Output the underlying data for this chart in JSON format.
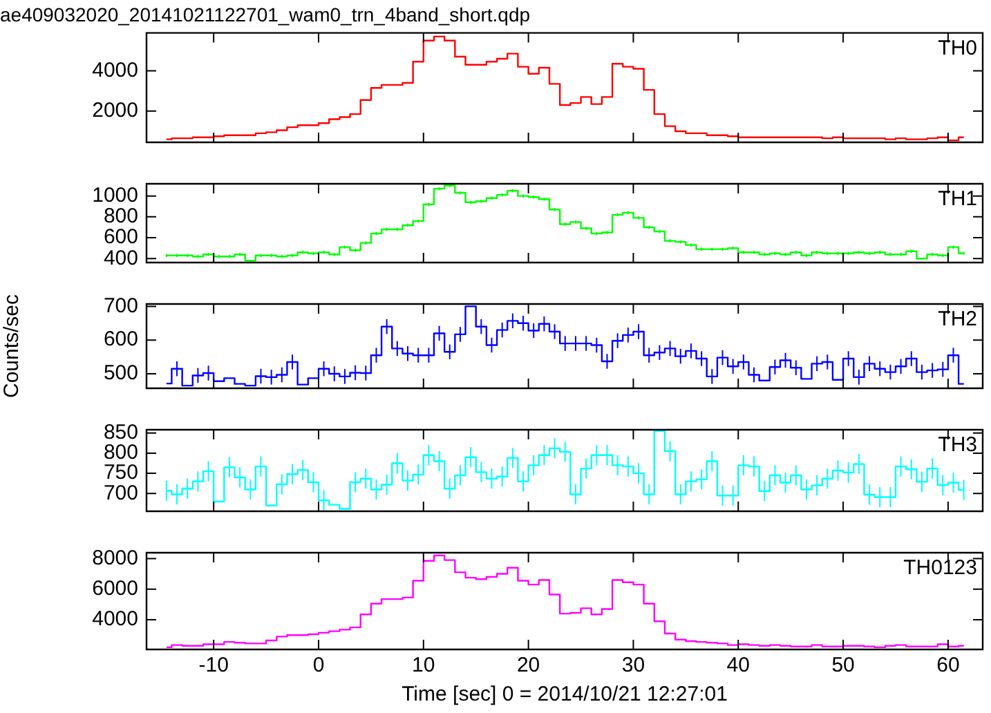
{
  "chart_data": [
    {
      "type": "step",
      "title": "ae409032020_20141021122701_wam0_trn_4band_short.qdp",
      "xlim": [
        -16.4,
        63.3
      ],
      "xticks": [
        -10,
        0,
        10,
        20,
        30,
        40,
        50,
        60
      ],
      "ylim": [
        450,
        5880
      ],
      "yticks": [
        2000,
        4000
      ],
      "tick_labels": "y",
      "legend": false,
      "grid": false,
      "x": [
        -14.5,
        -13.5,
        -12.5,
        -11.5,
        -10.5,
        -9.5,
        -8.5,
        -7.5,
        -6.5,
        -5.5,
        -4.5,
        -3.5,
        -2.5,
        -1.5,
        -0.5,
        0.5,
        1.5,
        2.5,
        3.5,
        4.5,
        5.5,
        6.5,
        7.5,
        8.5,
        9.5,
        10.5,
        11.5,
        12.5,
        13.5,
        14.5,
        15.5,
        16.5,
        17.5,
        18.5,
        19.5,
        20.5,
        21.5,
        22.5,
        23.5,
        24.5,
        25.5,
        26.5,
        27.5,
        28.5,
        29.5,
        30.5,
        31.5,
        32.5,
        33.5,
        34.5,
        35.5,
        36.5,
        37.5,
        38.5,
        39.5,
        40.5,
        41.5,
        42.5,
        43.5,
        44.5,
        45.5,
        46.5,
        47.5,
        48.5,
        49.5,
        50.5,
        51.5,
        52.5,
        53.5,
        54.5,
        55.5,
        56.5,
        57.5,
        58.5,
        59.5,
        60.5,
        61.5
      ],
      "series": [
        {
          "name": "TH0",
          "color": "#ff0000",
          "values": [
            600,
            650,
            650,
            700,
            700,
            750,
            800,
            800,
            800,
            900,
            950,
            1050,
            1200,
            1300,
            1300,
            1400,
            1600,
            1700,
            1850,
            2550,
            3150,
            3300,
            3300,
            3400,
            4450,
            5500,
            5700,
            5500,
            4700,
            4300,
            4300,
            4450,
            4600,
            4850,
            4200,
            3850,
            4150,
            3350,
            2300,
            2400,
            2700,
            2350,
            2700,
            4350,
            4200,
            4100,
            3050,
            1850,
            1250,
            1000,
            900,
            900,
            800,
            800,
            750,
            700,
            700,
            700,
            700,
            700,
            700,
            700,
            700,
            650,
            700,
            650,
            650,
            650,
            650,
            600,
            650,
            600,
            600,
            650,
            700,
            550,
            700
          ]
        }
      ]
    },
    {
      "type": "step",
      "xlim": [
        -16.4,
        63.3
      ],
      "xticks": [
        -10,
        0,
        10,
        20,
        30,
        40,
        50,
        60
      ],
      "ylim": [
        362,
        1117
      ],
      "yticks": [
        400,
        600,
        800,
        1000
      ],
      "tick_labels": "y",
      "legend": false,
      "grid": false,
      "x": [
        -14.5,
        -13.5,
        -12.5,
        -11.5,
        -10.5,
        -9.5,
        -8.5,
        -7.5,
        -6.5,
        -5.5,
        -4.5,
        -3.5,
        -2.5,
        -1.5,
        -0.5,
        0.5,
        1.5,
        2.5,
        3.5,
        4.5,
        5.5,
        6.5,
        7.5,
        8.5,
        9.5,
        10.5,
        11.5,
        12.5,
        13.5,
        14.5,
        15.5,
        16.5,
        17.5,
        18.5,
        19.5,
        20.5,
        21.5,
        22.5,
        23.5,
        24.5,
        25.5,
        26.5,
        27.5,
        28.5,
        29.5,
        30.5,
        31.5,
        32.5,
        33.5,
        34.5,
        35.5,
        36.5,
        37.5,
        38.5,
        39.5,
        40.5,
        41.5,
        42.5,
        43.5,
        44.5,
        45.5,
        46.5,
        47.5,
        48.5,
        49.5,
        50.5,
        51.5,
        52.5,
        53.5,
        54.5,
        55.5,
        56.5,
        57.5,
        58.5,
        59.5,
        60.5,
        61.5
      ],
      "series": [
        {
          "name": "TH1",
          "color": "#00ff00",
          "values": [
            430,
            430,
            430,
            420,
            440,
            420,
            420,
            440,
            380,
            430,
            430,
            420,
            430,
            460,
            450,
            460,
            440,
            510,
            480,
            550,
            640,
            680,
            680,
            720,
            760,
            920,
            1070,
            1100,
            1030,
            940,
            950,
            980,
            1010,
            1050,
            1000,
            990,
            970,
            870,
            730,
            750,
            690,
            640,
            650,
            820,
            840,
            790,
            700,
            660,
            570,
            560,
            530,
            490,
            490,
            490,
            500,
            460,
            460,
            440,
            450,
            440,
            460,
            430,
            460,
            450,
            450,
            450,
            460,
            450,
            460,
            440,
            440,
            470,
            400,
            440,
            430,
            510,
            450
          ],
          "errors": [
            15,
            15,
            15,
            15,
            15,
            15,
            15,
            15,
            null,
            15,
            15,
            15,
            15,
            15,
            15,
            15,
            15,
            15,
            15,
            15,
            15,
            15,
            15,
            15,
            15,
            15,
            15,
            15,
            15,
            15,
            15,
            15,
            15,
            15,
            15,
            15,
            15,
            15,
            15,
            15,
            15,
            15,
            15,
            15,
            15,
            15,
            15,
            15,
            15,
            15,
            15,
            15,
            15,
            15,
            15,
            15,
            15,
            15,
            15,
            15,
            15,
            15,
            15,
            15,
            15,
            15,
            15,
            15,
            15,
            15,
            15,
            15,
            null,
            15,
            15,
            15,
            15
          ]
        }
      ]
    },
    {
      "type": "step",
      "ylabel": "Counts/sec",
      "xlim": [
        -16.4,
        63.3
      ],
      "xticks": [
        -10,
        0,
        10,
        20,
        30,
        40,
        50,
        60
      ],
      "ylim": [
        457,
        707
      ],
      "yticks": [
        500,
        600,
        700
      ],
      "tick_labels": "y",
      "legend": false,
      "grid": false,
      "x": [
        -14.5,
        -13.5,
        -12.5,
        -11.5,
        -10.5,
        -9.5,
        -8.5,
        -7.5,
        -6.5,
        -5.5,
        -4.5,
        -3.5,
        -2.5,
        -1.5,
        -0.5,
        0.5,
        1.5,
        2.5,
        3.5,
        4.5,
        5.5,
        6.5,
        7.5,
        8.5,
        9.5,
        10.5,
        11.5,
        12.5,
        13.5,
        14.5,
        15.5,
        16.5,
        17.5,
        18.5,
        19.5,
        20.5,
        21.5,
        22.5,
        23.5,
        24.5,
        25.5,
        26.5,
        27.5,
        28.5,
        29.5,
        30.5,
        31.5,
        32.5,
        33.5,
        34.5,
        35.5,
        36.5,
        37.5,
        38.5,
        39.5,
        40.5,
        41.5,
        42.5,
        43.5,
        44.5,
        45.5,
        46.5,
        47.5,
        48.5,
        49.5,
        50.5,
        51.5,
        52.5,
        53.5,
        54.5,
        55.5,
        56.5,
        57.5,
        58.5,
        59.5,
        60.5,
        61.5
      ],
      "series": [
        {
          "name": "TH2",
          "color": "#0000ff",
          "values": [
            471,
            515,
            465,
            495,
            502,
            478,
            487,
            470,
            465,
            493,
            490,
            497,
            535,
            468,
            487,
            515,
            500,
            492,
            503,
            502,
            555,
            640,
            575,
            560,
            555,
            555,
            620,
            565,
            617,
            700,
            640,
            585,
            630,
            657,
            650,
            628,
            648,
            625,
            590,
            590,
            590,
            585,
            537,
            598,
            615,
            625,
            555,
            563,
            575,
            552,
            568,
            545,
            492,
            548,
            522,
            535,
            497,
            480,
            520,
            540,
            518,
            485,
            530,
            535,
            482,
            545,
            490,
            530,
            515,
            505,
            522,
            545,
            505,
            510,
            513,
            555,
            470
          ],
          "errors": [
            null,
            22,
            null,
            22,
            22,
            null,
            null,
            null,
            null,
            22,
            22,
            22,
            22,
            null,
            null,
            22,
            22,
            22,
            22,
            22,
            22,
            22,
            22,
            22,
            22,
            22,
            22,
            22,
            22,
            null,
            22,
            22,
            22,
            22,
            22,
            22,
            22,
            22,
            22,
            22,
            22,
            22,
            22,
            22,
            22,
            22,
            22,
            22,
            22,
            22,
            22,
            22,
            22,
            22,
            22,
            22,
            22,
            null,
            22,
            22,
            22,
            null,
            22,
            22,
            null,
            22,
            22,
            22,
            22,
            22,
            22,
            22,
            22,
            22,
            22,
            22,
            null
          ]
        }
      ]
    },
    {
      "type": "step",
      "xlim": [
        -16.4,
        63.3
      ],
      "xticks": [
        -10,
        0,
        10,
        20,
        30,
        40,
        50,
        60
      ],
      "ylim": [
        656,
        858
      ],
      "yticks": [
        700,
        750,
        800,
        850
      ],
      "tick_labels": "y",
      "legend": false,
      "grid": false,
      "x": [
        -14.5,
        -13.5,
        -12.5,
        -11.5,
        -10.5,
        -9.5,
        -8.5,
        -7.5,
        -6.5,
        -5.5,
        -4.5,
        -3.5,
        -2.5,
        -1.5,
        -0.5,
        0.5,
        1.5,
        2.5,
        3.5,
        4.5,
        5.5,
        6.5,
        7.5,
        8.5,
        9.5,
        10.5,
        11.5,
        12.5,
        13.5,
        14.5,
        15.5,
        16.5,
        17.5,
        18.5,
        19.5,
        20.5,
        21.5,
        22.5,
        23.5,
        24.5,
        25.5,
        26.5,
        27.5,
        28.5,
        29.5,
        30.5,
        31.5,
        32.5,
        33.5,
        34.5,
        35.5,
        36.5,
        37.5,
        38.5,
        39.5,
        40.5,
        41.5,
        42.5,
        43.5,
        44.5,
        45.5,
        46.5,
        47.5,
        48.5,
        49.5,
        50.5,
        51.5,
        52.5,
        53.5,
        54.5,
        55.5,
        56.5,
        57.5,
        58.5,
        59.5,
        60.5,
        61.5
      ],
      "series": [
        {
          "name": "TH3",
          "color": "#00ffff",
          "values": [
            707,
            698,
            712,
            730,
            755,
            680,
            765,
            740,
            710,
            767,
            670,
            723,
            748,
            758,
            728,
            683,
            672,
            662,
            728,
            737,
            710,
            722,
            775,
            732,
            747,
            795,
            780,
            712,
            745,
            790,
            753,
            737,
            742,
            788,
            730,
            770,
            795,
            812,
            803,
            698,
            762,
            795,
            795,
            770,
            767,
            750,
            698,
            855,
            805,
            698,
            730,
            735,
            780,
            695,
            695,
            770,
            767,
            706,
            745,
            727,
            745,
            710,
            720,
            737,
            757,
            752,
            773,
            697,
            691,
            691,
            767,
            760,
            729,
            762,
            721,
            727,
            709
          ],
          "errors": [
            25,
            25,
            25,
            25,
            25,
            null,
            25,
            25,
            25,
            25,
            null,
            25,
            25,
            25,
            25,
            25,
            null,
            null,
            25,
            25,
            25,
            25,
            25,
            25,
            25,
            25,
            25,
            25,
            25,
            25,
            25,
            25,
            25,
            25,
            25,
            25,
            25,
            25,
            25,
            25,
            25,
            25,
            25,
            25,
            25,
            25,
            25,
            null,
            25,
            25,
            25,
            25,
            25,
            25,
            25,
            25,
            25,
            25,
            25,
            25,
            25,
            25,
            25,
            25,
            25,
            25,
            25,
            25,
            25,
            25,
            25,
            25,
            25,
            25,
            25,
            25,
            25
          ]
        }
      ]
    },
    {
      "type": "step",
      "xlabel": "Time [sec] 0 = 2014/10/21 12:27:01",
      "xlim": [
        -16.4,
        63.3
      ],
      "xticks": [
        -10,
        0,
        10,
        20,
        30,
        40,
        50,
        60
      ],
      "ylim": [
        2060,
        8380
      ],
      "yticks": [
        4000,
        6000,
        8000
      ],
      "legend": false,
      "grid": false,
      "x": [
        -14.5,
        -13.5,
        -12.5,
        -11.5,
        -10.5,
        -9.5,
        -8.5,
        -7.5,
        -6.5,
        -5.5,
        -4.5,
        -3.5,
        -2.5,
        -1.5,
        -0.5,
        0.5,
        1.5,
        2.5,
        3.5,
        4.5,
        5.5,
        6.5,
        7.5,
        8.5,
        9.5,
        10.5,
        11.5,
        12.5,
        13.5,
        14.5,
        15.5,
        16.5,
        17.5,
        18.5,
        19.5,
        20.5,
        21.5,
        22.5,
        23.5,
        24.5,
        25.5,
        26.5,
        27.5,
        28.5,
        29.5,
        30.5,
        31.5,
        32.5,
        33.5,
        34.5,
        35.5,
        36.5,
        37.5,
        38.5,
        39.5,
        40.5,
        41.5,
        42.5,
        43.5,
        44.5,
        45.5,
        46.5,
        47.5,
        48.5,
        49.5,
        50.5,
        51.5,
        52.5,
        53.5,
        54.5,
        55.5,
        56.5,
        57.5,
        58.5,
        59.5,
        60.5,
        61.5
      ],
      "series": [
        {
          "name": "TH0123",
          "color": "#ff00ff",
          "values": [
            2200,
            2350,
            2300,
            2300,
            2400,
            2400,
            2550,
            2500,
            2450,
            2450,
            2650,
            2900,
            3000,
            3000,
            3050,
            3150,
            3250,
            3350,
            3500,
            4350,
            5050,
            5350,
            5350,
            5450,
            6550,
            7850,
            8200,
            7900,
            7100,
            6750,
            6650,
            6800,
            7000,
            7400,
            6550,
            6300,
            6600,
            5650,
            4400,
            4450,
            4750,
            4350,
            4700,
            6600,
            6450,
            6300,
            5050,
            3900,
            3100,
            2700,
            2600,
            2550,
            2500,
            2450,
            2350,
            2400,
            2350,
            2300,
            2350,
            2300,
            2250,
            2250,
            2350,
            2250,
            2250,
            2300,
            2300,
            2250,
            2200,
            2300,
            2350,
            2250,
            2250,
            2250,
            2400,
            2250,
            2300
          ]
        }
      ]
    }
  ]
}
